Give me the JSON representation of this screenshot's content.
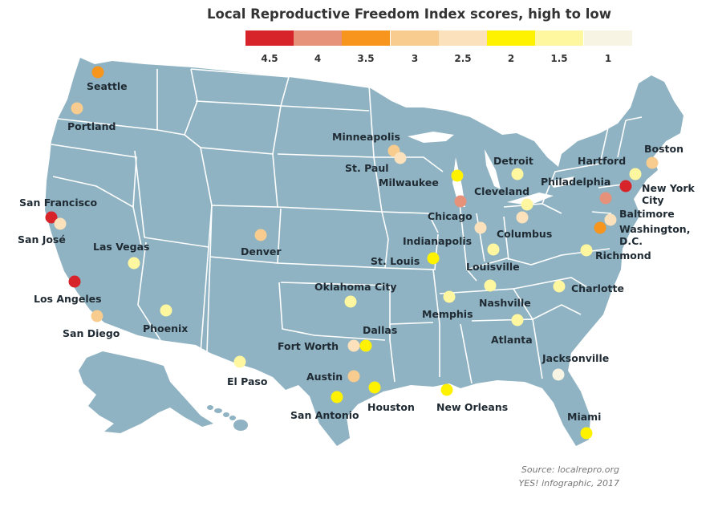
{
  "title": "Local Reproductive Freedom Index scores, high to low",
  "legend": [
    {
      "label": "4.5",
      "color": "#d7232a"
    },
    {
      "label": "4",
      "color": "#e6917a"
    },
    {
      "label": "3.5",
      "color": "#f7951d"
    },
    {
      "label": "3",
      "color": "#f8cc8f"
    },
    {
      "label": "2.5",
      "color": "#fbe1bc"
    },
    {
      "label": "2",
      "color": "#fff200"
    },
    {
      "label": "1.5",
      "color": "#fff7a0"
    },
    {
      "label": "1",
      "color": "#f7f4e3"
    }
  ],
  "map_colors": {
    "land": "#8fb3c2",
    "border": "#ffffff"
  },
  "cities": [
    {
      "name": "Seattle",
      "color": "#f7951d"
    },
    {
      "name": "Portland",
      "color": "#f8cc8f"
    },
    {
      "name": "San Francisco",
      "color": "#d7232a"
    },
    {
      "name": "San José",
      "color": "#fbe1bc"
    },
    {
      "name": "Los Angeles",
      "color": "#d7232a"
    },
    {
      "name": "San Diego",
      "color": "#f8cc8f"
    },
    {
      "name": "Las Vegas",
      "color": "#fff7a0"
    },
    {
      "name": "Phoenix",
      "color": "#fff7a0"
    },
    {
      "name": "Denver",
      "color": "#f8cc8f"
    },
    {
      "name": "El Paso",
      "color": "#fff7a0"
    },
    {
      "name": "Minneapolis",
      "color": "#f8cc8f"
    },
    {
      "name": "St. Paul",
      "color": "#fbe1bc"
    },
    {
      "name": "Milwaukee",
      "color": "#fff200"
    },
    {
      "name": "Chicago",
      "color": "#e6917a"
    },
    {
      "name": "Oklahoma City",
      "color": "#fff7a0"
    },
    {
      "name": "Fort Worth",
      "color": "#fbe1bc"
    },
    {
      "name": "Dallas",
      "color": "#fff200"
    },
    {
      "name": "Austin",
      "color": "#f8cc8f"
    },
    {
      "name": "San Antonio",
      "color": "#fff200"
    },
    {
      "name": "Houston",
      "color": "#fff200"
    },
    {
      "name": "St. Louis",
      "color": "#fff200"
    },
    {
      "name": "Indianapolis",
      "color": "#fbe1bc"
    },
    {
      "name": "Louisville",
      "color": "#fff7a0"
    },
    {
      "name": "Memphis",
      "color": "#fff7a0"
    },
    {
      "name": "Nashville",
      "color": "#fff7a0"
    },
    {
      "name": "New Orleans",
      "color": "#fff200"
    },
    {
      "name": "Atlanta",
      "color": "#fff7a0"
    },
    {
      "name": "Detroit",
      "color": "#fff7a0"
    },
    {
      "name": "Cleveland",
      "color": "#fff7a0"
    },
    {
      "name": "Columbus",
      "color": "#fbe1bc"
    },
    {
      "name": "Charlotte",
      "color": "#fff7a0"
    },
    {
      "name": "Jacksonville",
      "color": "#f7f4e3"
    },
    {
      "name": "Miami",
      "color": "#fff200"
    },
    {
      "name": "Philadelphia",
      "color": "#e6917a"
    },
    {
      "name": "New York City",
      "color": "#d7232a"
    },
    {
      "name": "Hartford",
      "color": "#fff7a0"
    },
    {
      "name": "Boston",
      "color": "#f8cc8f"
    },
    {
      "name": "Baltimore",
      "color": "#fbe1bc"
    },
    {
      "name": "Washington, D.C.",
      "color": "#f7951d"
    },
    {
      "name": "Richmond",
      "color": "#fff7a0"
    }
  ],
  "source_line1": "Source: localrepro.org",
  "source_line2": "YES! infographic, 2017"
}
